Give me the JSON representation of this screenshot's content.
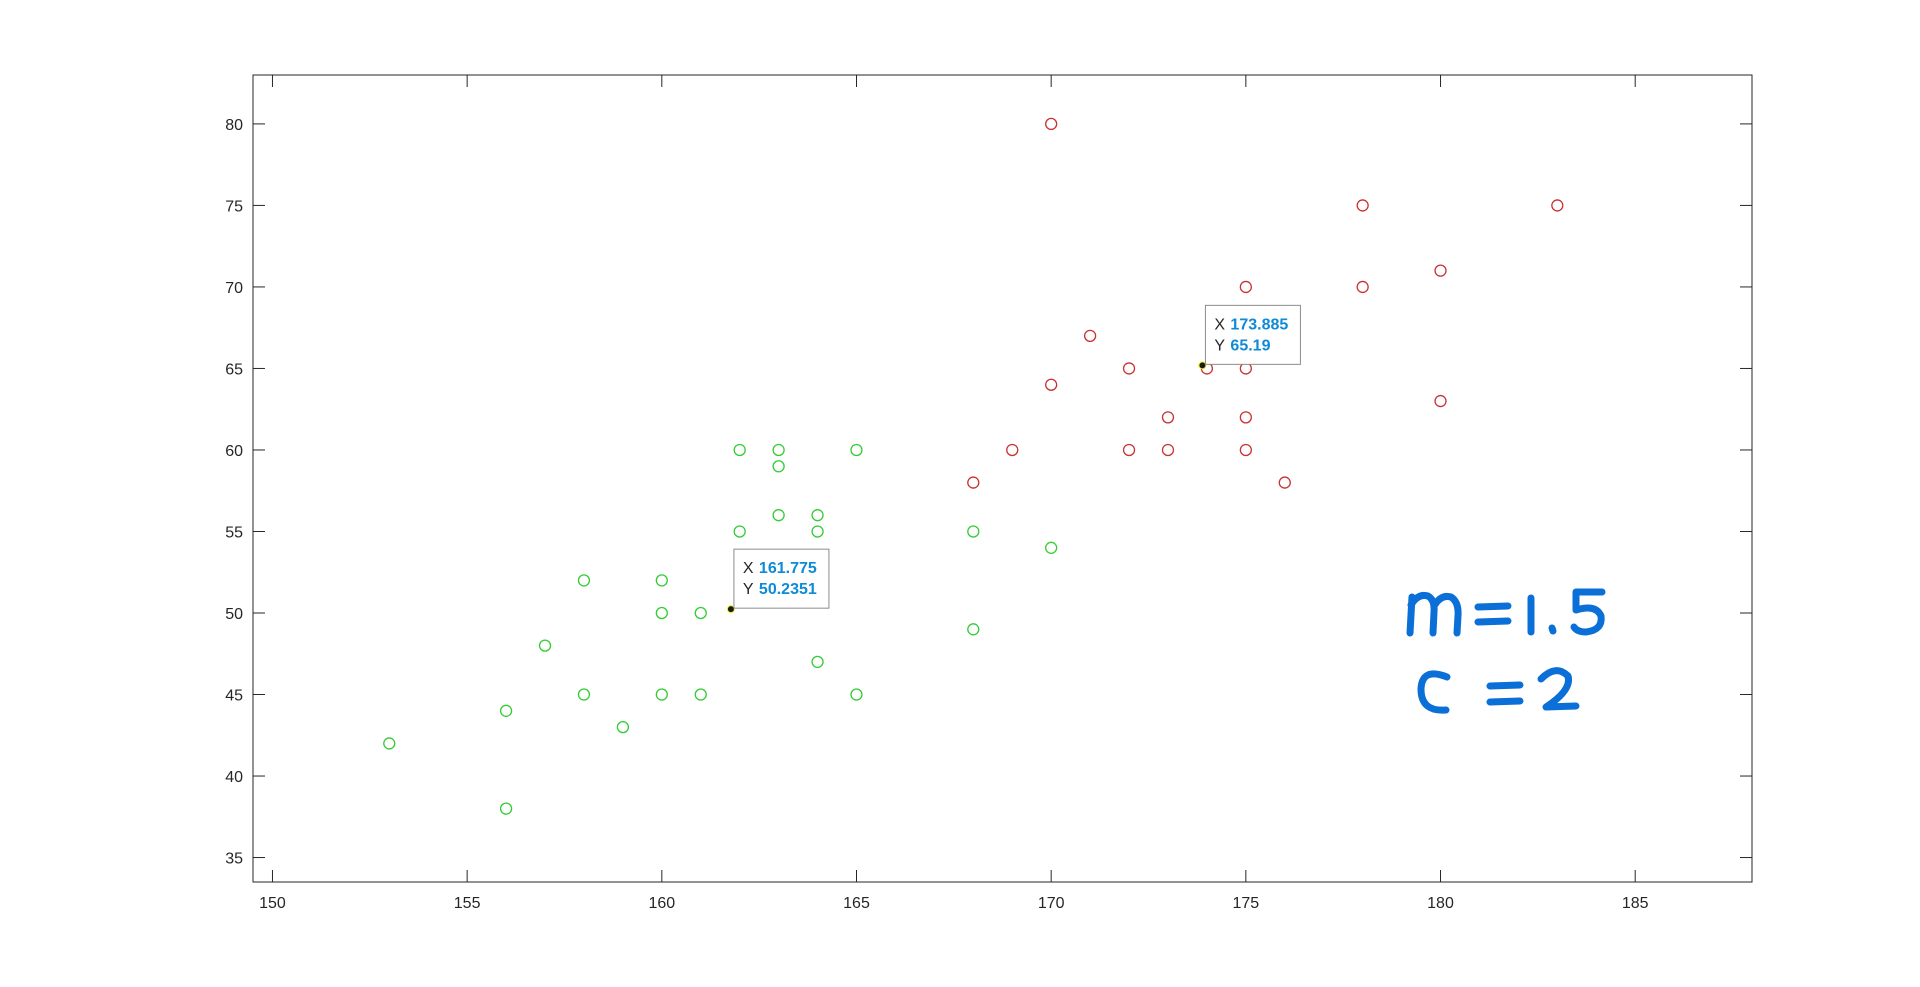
{
  "chart_data": {
    "type": "scatter",
    "title": "",
    "xlabel": "",
    "ylabel": "",
    "xlim": [
      149.5,
      188
    ],
    "ylim": [
      33.5,
      83
    ],
    "xticks": [
      150,
      155,
      160,
      165,
      170,
      175,
      180,
      185
    ],
    "yticks": [
      35,
      40,
      45,
      50,
      55,
      60,
      65,
      70,
      75,
      80
    ],
    "grid": false,
    "legend": "none",
    "marker": "circle-open",
    "series": [
      {
        "color": "#33cc33",
        "points": [
          [
            153,
            42
          ],
          [
            156,
            44
          ],
          [
            156,
            38
          ],
          [
            157,
            48
          ],
          [
            158,
            52
          ],
          [
            158,
            45
          ],
          [
            159,
            43
          ],
          [
            160,
            52
          ],
          [
            160,
            50
          ],
          [
            160,
            45
          ],
          [
            161,
            50
          ],
          [
            161,
            45
          ],
          [
            162,
            60
          ],
          [
            162,
            55
          ],
          [
            163,
            60
          ],
          [
            163,
            59
          ],
          [
            163,
            56
          ],
          [
            164,
            56
          ],
          [
            164,
            55
          ],
          [
            164,
            47
          ],
          [
            165,
            60
          ],
          [
            165,
            45
          ],
          [
            168,
            55
          ],
          [
            168,
            49
          ],
          [
            170,
            54
          ]
        ]
      },
      {
        "color": "#c83232",
        "points": [
          [
            168,
            58
          ],
          [
            169,
            60
          ],
          [
            170,
            80
          ],
          [
            170,
            64
          ],
          [
            171,
            67
          ],
          [
            172,
            65
          ],
          [
            172,
            60
          ],
          [
            173,
            62
          ],
          [
            173,
            60
          ],
          [
            174,
            65
          ],
          [
            175,
            70
          ],
          [
            175,
            65
          ],
          [
            175,
            62
          ],
          [
            175,
            60
          ],
          [
            176,
            58
          ],
          [
            178,
            75
          ],
          [
            178,
            70
          ],
          [
            180,
            71
          ],
          [
            180,
            63
          ],
          [
            183,
            75
          ]
        ]
      }
    ],
    "datatips": [
      {
        "x_label": "X",
        "x_value": "161.775",
        "y_label": "Y",
        "y_value": "50.2351",
        "x": 161.775,
        "y": 50.2351
      },
      {
        "x_label": "X",
        "x_value": "173.885",
        "y_label": "Y",
        "y_value": "65.19",
        "x": 173.885,
        "y": 65.19
      }
    ],
    "colors": {
      "axis": "#262626",
      "tip_value": "#0e8ad6",
      "handwriting": "#0a6fd6"
    }
  },
  "annotation": {
    "lines": [
      "m = 1.5",
      "c = 2"
    ]
  }
}
